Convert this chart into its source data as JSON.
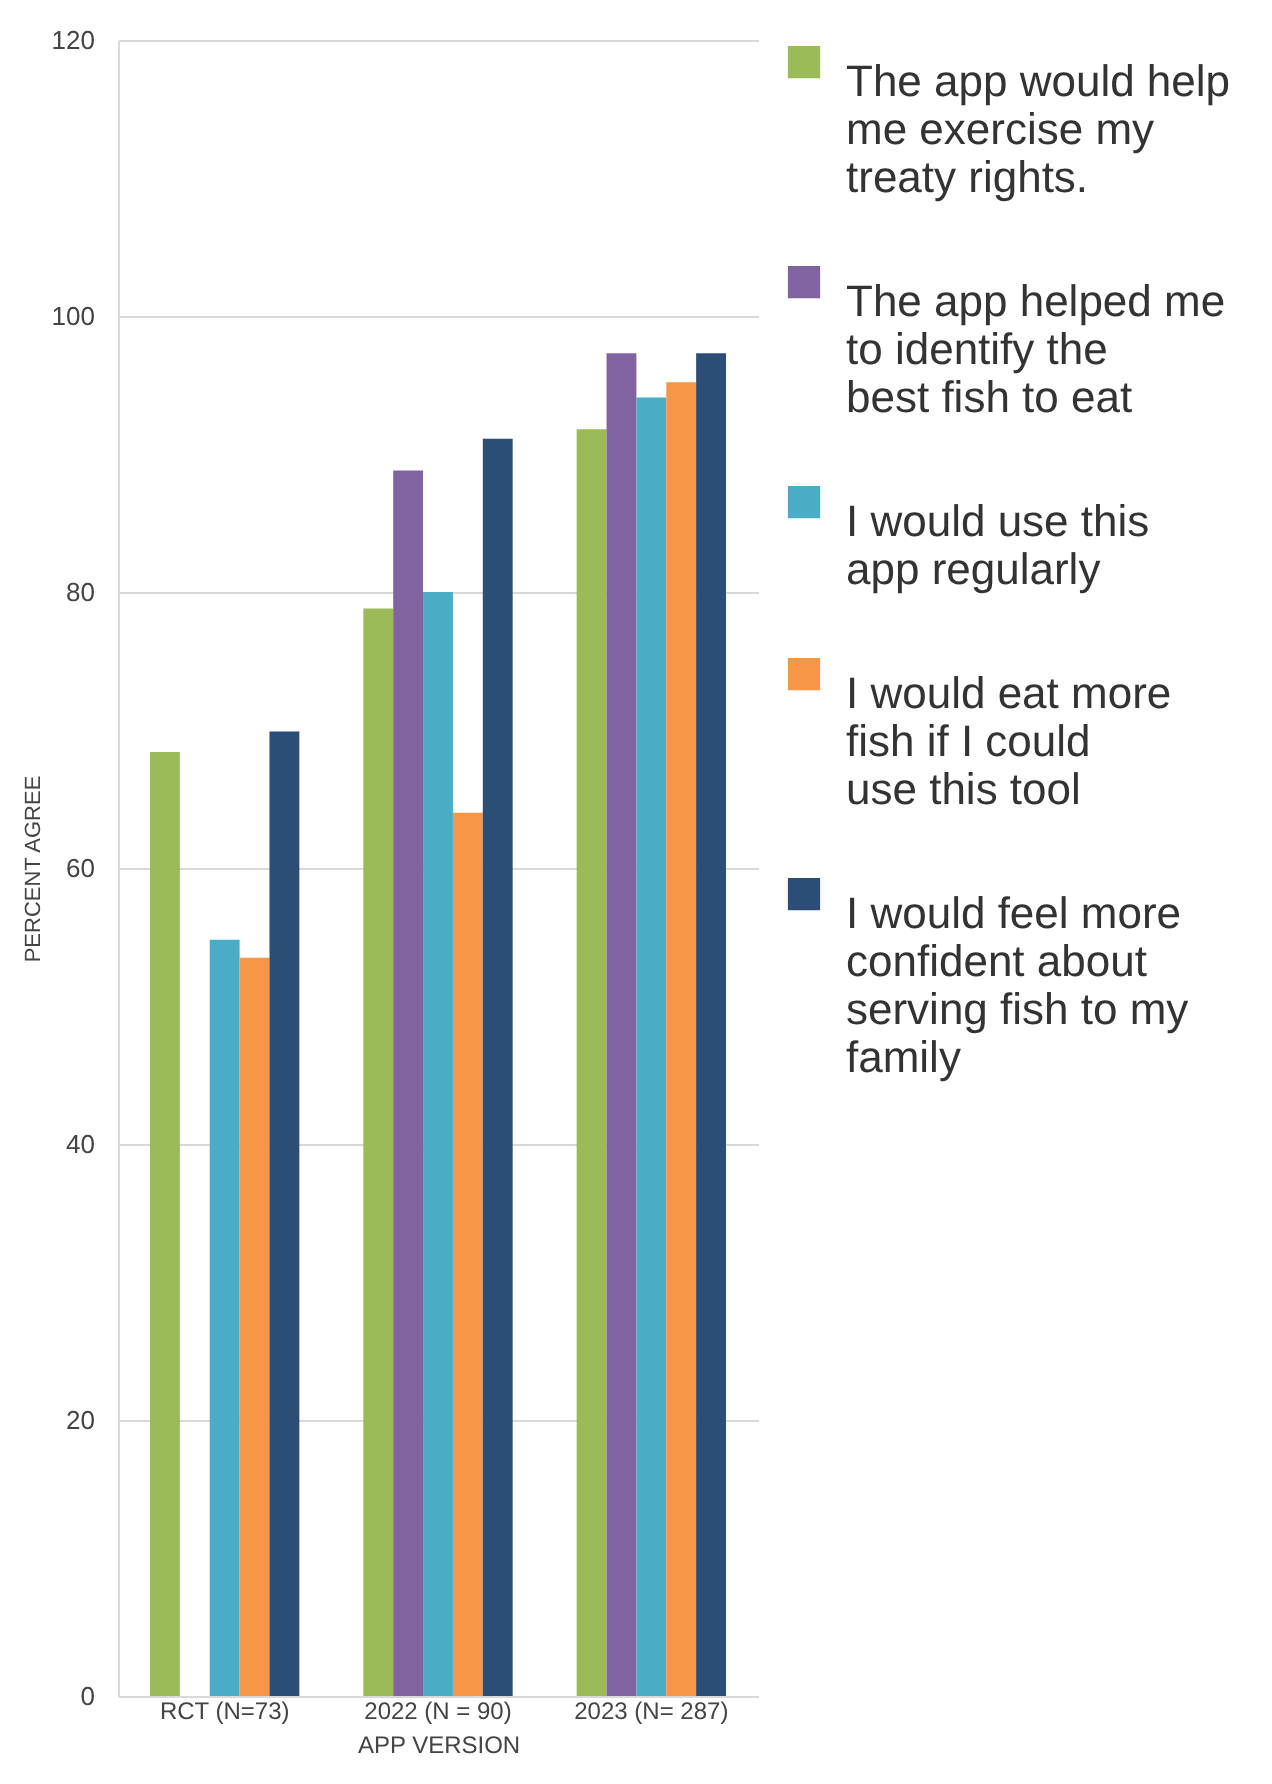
{
  "chart_data": {
    "type": "bar",
    "xlabel": "APP VERSION",
    "ylabel": "PERCENT AGREE",
    "categories": [
      "RCT (N=73)",
      "2022 (N = 90)",
      "2023 (N= 287)"
    ],
    "series": [
      {
        "name": "The app would help me exercise my treaty rights.",
        "color": "#9bbb59",
        "values": [
          68.4,
          78.8,
          91.8
        ]
      },
      {
        "name": "The app helped me to identify the best fish to eat",
        "color": "#8064a2",
        "values": [
          null,
          88.8,
          97.3
        ]
      },
      {
        "name": "I would use this app regularly",
        "color": "#4bacc6",
        "values": [
          54.8,
          80,
          94.1
        ]
      },
      {
        "name": "I would eat more fish if I could use this tool",
        "color": "#f79646",
        "values": [
          53.5,
          64,
          95.2
        ]
      },
      {
        "name": "I would feel more confident about serving fish to my family",
        "color": "#2c4d75",
        "values": [
          69.9,
          91.1,
          97.3
        ]
      }
    ],
    "ylim": [
      0,
      120
    ],
    "yticks": [
      0,
      20,
      40,
      60,
      80,
      100,
      120
    ],
    "grid": "y",
    "legend": "right"
  }
}
